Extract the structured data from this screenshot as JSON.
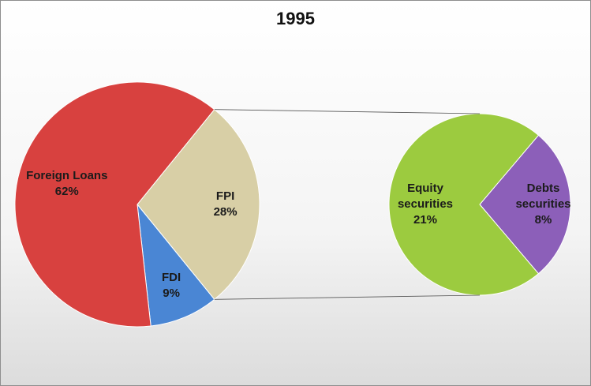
{
  "chart_data": {
    "type": "pie-of-pie",
    "title": "1995",
    "categories": [
      "FPI",
      "FDI",
      "Foreign Loans"
    ],
    "values": [
      28,
      9,
      62
    ],
    "value_labels": [
      "28%",
      "9%",
      "62%"
    ],
    "colors": [
      "#d8cfa6",
      "#4a86d4",
      "#d8413f"
    ],
    "expand": 0,
    "secondary": {
      "categories": [
        "Debts securities",
        "Equity securities"
      ],
      "values": [
        8,
        21
      ],
      "value_labels": [
        "8%",
        "21%"
      ],
      "colors": [
        "#8c5fb9",
        "#9ccb3f"
      ]
    }
  }
}
